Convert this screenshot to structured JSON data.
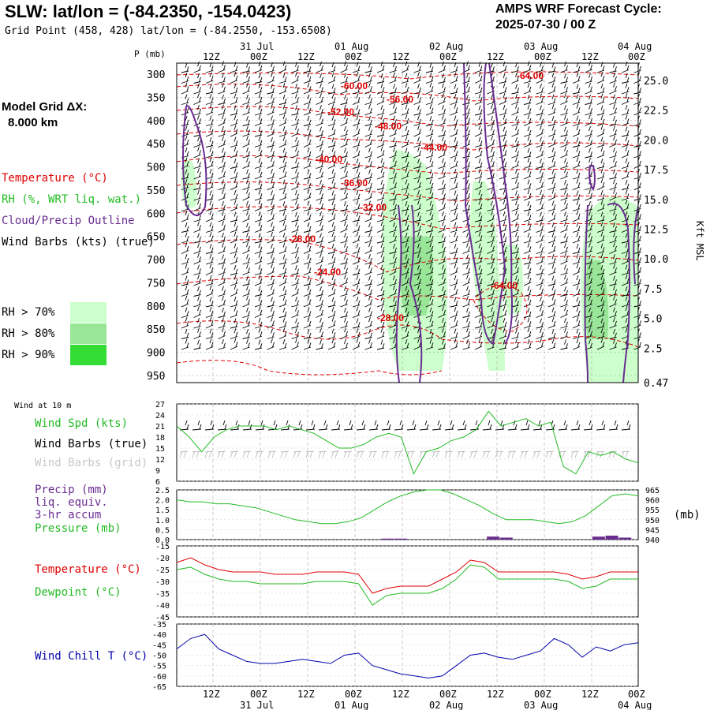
{
  "header": {
    "title": "SLW:  lat/lon = (-84.2350, -154.0423)",
    "subtitle": "Grid Point (458, 428) lat/lon = (-84.2550, -153.6508)",
    "cycle_line1": "AMPS WRF Forecast Cycle:",
    "cycle_line2": "2025-07-30 / 00  Z",
    "model_grid_line1": "Model Grid ΔX:",
    "model_grid_line2": "8.000 km"
  },
  "legend": {
    "temperature": "Temperature (°C)",
    "rh": "RH (%, WRT liq. wat.)",
    "cloud": "Cloud/Precip Outline",
    "wind_barbs": "Wind Barbs (kts) (true)",
    "rh70": "RH > 70%",
    "rh80": "RH > 80%",
    "rh90": "RH > 90%",
    "rh70_color": "#ccffcc",
    "rh80_color": "#99e699",
    "rh90_color": "#33dd33"
  },
  "panel_labels": {
    "wind_at_10m": "Wind at 10 m",
    "wind_spd": "Wind Spd (kts)",
    "wind_barbs_true": "Wind Barbs (true)",
    "wind_barbs_grid": "Wind Barbs (grid)",
    "precip1": "Precip (mm)",
    "precip2": "liq. equiv.",
    "precip3": "3-hr accum",
    "pressure": "Pressure (mb)",
    "pressure_unit": "(mb)",
    "temperature": "Temperature (°C)",
    "dewpoint": "Dewpoint (°C)",
    "wind_chill": "Wind Chill T (°C)",
    "p_axis_label": "P (mb)",
    "height_axis_label": "Kft MSL"
  },
  "time_axis": {
    "hour_labels": [
      "12Z",
      "00Z",
      "12Z",
      "00Z",
      "12Z",
      "00Z",
      "12Z",
      "00Z",
      "12Z",
      "00Z"
    ],
    "date_labels": [
      "31 Jul",
      "01 Aug",
      "02 Aug",
      "03 Aug",
      "04 Aug"
    ]
  },
  "chart_data": [
    {
      "type": "contour",
      "name": "vertical cross-section",
      "ylabel": "P (mb)",
      "y2label": "Kft MSL",
      "pressure_ticks": [
        300,
        350,
        400,
        450,
        500,
        550,
        600,
        650,
        700,
        750,
        800,
        850,
        900,
        950
      ],
      "height_ticks": [
        "25.0",
        "22.5",
        "20.0",
        "17.5",
        "15.0",
        "12.5",
        "10.0",
        "7.5",
        "5.0",
        "2.5",
        "0.47"
      ],
      "temperature_labels": [
        {
          "value": "-60.00"
        },
        {
          "value": "-56.00"
        },
        {
          "value": "-52.00"
        },
        {
          "value": "-48.00"
        },
        {
          "value": "-44.00"
        },
        {
          "value": "-40.00"
        },
        {
          "value": "-36.00"
        },
        {
          "value": "-32.00"
        },
        {
          "value": "-28.00"
        },
        {
          "value": "-24.00"
        },
        {
          "value": "-28.00"
        },
        {
          "value": "-64.00"
        },
        {
          "value": "-64.00"
        }
      ],
      "colors": {
        "temperature": "#e00000",
        "cloud": "#6a2c91",
        "wind": "#000000"
      }
    },
    {
      "type": "line",
      "name": "10m wind",
      "ylim": [
        6,
        27
      ],
      "yticks": [
        6,
        9,
        12,
        15,
        18,
        21,
        24,
        27
      ],
      "series": [
        {
          "name": "Wind Spd (kts)",
          "color": "#22bb22",
          "values": [
            21,
            18,
            14,
            18,
            20,
            21,
            21,
            21,
            20,
            21,
            20,
            19,
            17,
            15,
            15,
            16,
            18,
            19,
            18,
            8,
            14,
            15,
            17,
            18,
            20,
            25,
            21,
            22,
            23,
            21,
            22,
            10,
            8,
            14,
            13,
            14,
            12,
            11
          ]
        }
      ]
    },
    {
      "type": "line",
      "name": "precip and pressure",
      "ylim": [
        0,
        2.5
      ],
      "yticks": [
        0.0,
        0.5,
        1.0,
        1.5,
        2.0,
        2.5
      ],
      "y2ticks": [
        940,
        945,
        950,
        955,
        960,
        965
      ],
      "series": [
        {
          "name": "Pressure (mb)",
          "color": "#22bb22",
          "values": [
            960,
            959,
            959,
            958,
            958,
            957,
            956,
            954,
            952,
            950,
            949,
            948,
            948,
            949,
            951,
            955,
            959,
            962,
            964,
            965,
            965,
            963,
            960,
            957,
            953,
            950,
            950,
            950,
            949,
            948,
            949,
            952,
            957,
            962,
            963,
            962
          ]
        },
        {
          "name": "Precip (mm)",
          "color": "#6a2c91",
          "values": [
            0,
            0,
            0,
            0,
            0,
            0,
            0,
            0,
            0,
            0,
            0,
            0,
            0,
            0,
            0,
            0,
            0.05,
            0.05,
            0,
            0,
            0,
            0,
            0,
            0,
            0.15,
            0.1,
            0,
            0,
            0,
            0,
            0,
            0,
            0.15,
            0.2,
            0.1,
            0
          ]
        }
      ]
    },
    {
      "type": "line",
      "name": "temperature and dewpoint",
      "ylim": [
        -45,
        -15
      ],
      "yticks": [
        -45,
        -40,
        -35,
        -30,
        -25,
        -20,
        -15
      ],
      "series": [
        {
          "name": "Temperature (°C)",
          "color": "#e00000",
          "values": [
            -22,
            -20,
            -23,
            -25,
            -26,
            -26,
            -26,
            -27,
            -27,
            -27,
            -26,
            -26,
            -26,
            -27,
            -35,
            -33,
            -32,
            -32,
            -32,
            -29,
            -26,
            -21,
            -22,
            -26,
            -26,
            -26,
            -26,
            -26,
            -27,
            -29,
            -28,
            -26,
            -26,
            -26
          ]
        },
        {
          "name": "Dewpoint (°C)",
          "color": "#22bb22",
          "values": [
            -25,
            -24,
            -27,
            -29,
            -30,
            -30,
            -31,
            -31,
            -31,
            -31,
            -30,
            -30,
            -30,
            -31,
            -40,
            -36,
            -35,
            -35,
            -35,
            -33,
            -29,
            -23,
            -24,
            -29,
            -29,
            -29,
            -29,
            -29,
            -30,
            -33,
            -32,
            -29,
            -29,
            -29
          ]
        }
      ]
    },
    {
      "type": "line",
      "name": "wind chill",
      "ylim": [
        -65,
        -35
      ],
      "yticks": [
        -65,
        -60,
        -55,
        -50,
        -45,
        -40,
        -35
      ],
      "series": [
        {
          "name": "Wind Chill T (°C)",
          "color": "#0000aa",
          "values": [
            -47,
            -42,
            -40,
            -47,
            -50,
            -53,
            -54,
            -54,
            -53,
            -52,
            -53,
            -54,
            -50,
            -49,
            -55,
            -57,
            -59,
            -60,
            -61,
            -60,
            -55,
            -50,
            -49,
            -51,
            -52,
            -50,
            -48,
            -42,
            -45,
            -51,
            -46,
            -48,
            -45,
            -44
          ]
        }
      ]
    }
  ]
}
